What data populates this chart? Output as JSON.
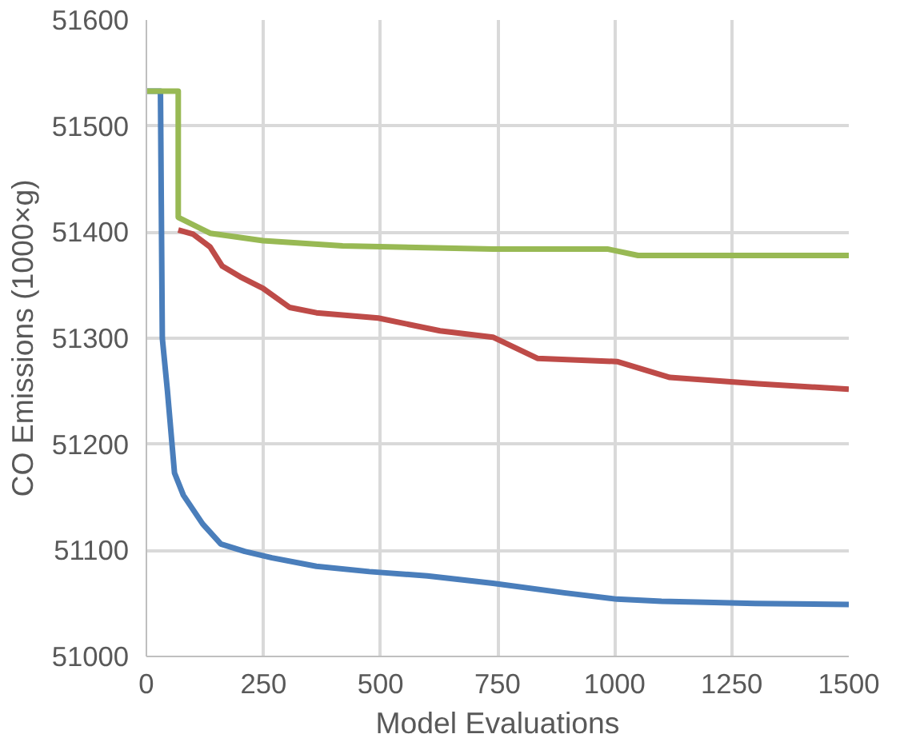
{
  "chart_data": {
    "type": "line",
    "xlabel": "Model Evaluations",
    "ylabel": "CO Emissions (1000×g)",
    "xlim": [
      0,
      1500
    ],
    "ylim": [
      51000,
      51600
    ],
    "xticks": [
      0,
      250,
      500,
      750,
      1000,
      1250,
      1500
    ],
    "yticks": [
      51000,
      51100,
      51200,
      51300,
      51400,
      51500,
      51600
    ],
    "grid": true,
    "marker": "none",
    "line_style": "solid",
    "series": [
      {
        "color": "#4a7ebb",
        "x": [
          0,
          30,
          34,
          45,
          60,
          79,
          120,
          159,
          210,
          268,
          363,
          476,
          600,
          740,
          892,
          1005,
          1100,
          1194,
          1300,
          1500
        ],
        "values": [
          51533,
          51533,
          51300,
          51250,
          51173,
          51152,
          51125,
          51106,
          51099,
          51093,
          51085,
          51080,
          51076,
          51069,
          51060,
          51054,
          51052,
          51051,
          51050,
          51049
        ]
      },
      {
        "color": "#be4b48",
        "x": [
          68,
          100,
          136,
          162,
          200,
          249,
          306,
          363,
          495,
          627,
          740,
          835,
          1005,
          1118,
          1307,
          1500
        ],
        "values": [
          51402,
          51398,
          51386,
          51368,
          51358,
          51347,
          51329,
          51324,
          51319,
          51307,
          51301,
          51281,
          51278,
          51263,
          51257,
          51252
        ]
      },
      {
        "color": "#98b954",
        "x": [
          0,
          68,
          68,
          136,
          249,
          419,
          740,
          986,
          1050,
          1500
        ],
        "values": [
          51533,
          51533,
          51414,
          51399,
          51392,
          51387,
          51384,
          51384,
          51378,
          51378
        ]
      }
    ]
  }
}
